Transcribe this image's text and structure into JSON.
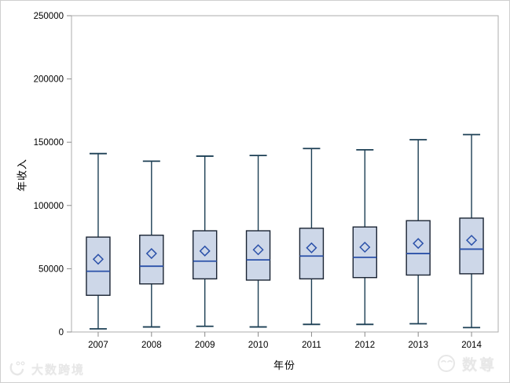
{
  "chart_data": {
    "type": "boxplot",
    "title": "",
    "xlabel": "年份",
    "ylabel": "年收入",
    "ylim": [
      0,
      250000
    ],
    "yticks": [
      0,
      50000,
      100000,
      150000,
      200000,
      250000
    ],
    "grid": false,
    "legend": "none",
    "categories": [
      "2007",
      "2008",
      "2009",
      "2010",
      "2011",
      "2012",
      "2013",
      "2014"
    ],
    "series": [
      {
        "category": "2007",
        "min": 2500,
        "q1": 29000,
        "median": 48000,
        "mean": 57500,
        "q3": 75000,
        "max": 141000
      },
      {
        "category": "2008",
        "min": 4000,
        "q1": 38000,
        "median": 52000,
        "mean": 62000,
        "q3": 76500,
        "max": 135000
      },
      {
        "category": "2009",
        "min": 4500,
        "q1": 42000,
        "median": 56000,
        "mean": 64000,
        "q3": 80000,
        "max": 139000
      },
      {
        "category": "2010",
        "min": 4000,
        "q1": 41000,
        "median": 57000,
        "mean": 65000,
        "q3": 80000,
        "max": 139500
      },
      {
        "category": "2011",
        "min": 6000,
        "q1": 42000,
        "median": 60000,
        "mean": 66500,
        "q3": 82000,
        "max": 145000
      },
      {
        "category": "2012",
        "min": 6000,
        "q1": 43000,
        "median": 59000,
        "mean": 67000,
        "q3": 83000,
        "max": 144000
      },
      {
        "category": "2013",
        "min": 6500,
        "q1": 45000,
        "median": 62000,
        "mean": 70000,
        "q3": 88000,
        "max": 152000
      },
      {
        "category": "2014",
        "min": 3500,
        "q1": 46000,
        "median": 65500,
        "mean": 72500,
        "q3": 90000,
        "max": 156000
      }
    ]
  },
  "colors": {
    "box_fill": "#cdd7e8",
    "box_border": "#1a2433",
    "whisker": "#1c3f54",
    "median": "#2b51a9",
    "mean_marker": "#2b51a9",
    "frame": "#aeaeae",
    "tick": "#8a8a8a",
    "tick_label": "#000000",
    "watermark": "#e7e7e7"
  },
  "watermarks": {
    "left": {
      "text": "大数跨境"
    },
    "right": {
      "text": "数尊"
    }
  }
}
